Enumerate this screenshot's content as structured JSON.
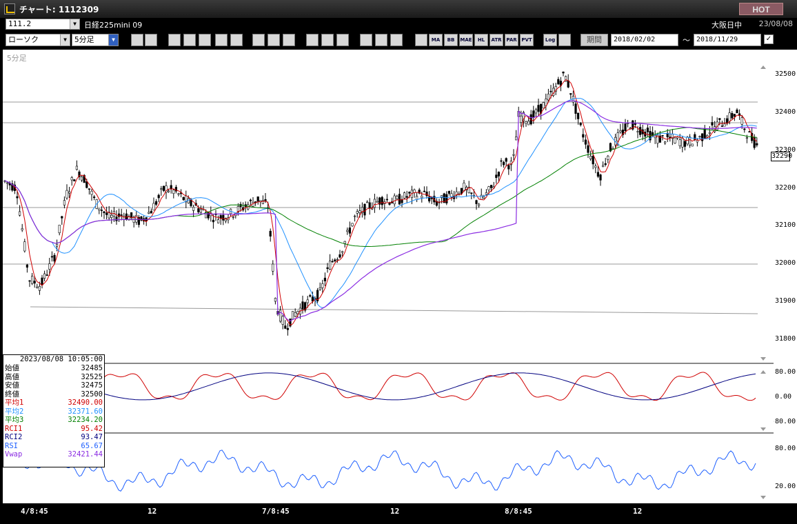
{
  "window": {
    "title": "チャート: 1112309",
    "hot_label": "HOT"
  },
  "symbol_bar": {
    "code": "111.2",
    "product_name": "日経225mini 09",
    "market": "大阪日中",
    "date": "23/08/08"
  },
  "toolbar": {
    "chart_type": "ローソク",
    "interval": "5分足",
    "buttons": [
      "MA",
      "BB",
      "MAE",
      "HL",
      "ATR",
      "PAR",
      "PVT",
      "Log"
    ],
    "period_label": "期間",
    "start_date": "2018/02/02",
    "range_sep": "～",
    "end_date": "2018/11/29"
  },
  "chart": {
    "interval_label": "5分足",
    "last_price_tag": "32290",
    "price_ticks": [
      "32500",
      "32400",
      "32300",
      "32200",
      "32100",
      "32000",
      "31900",
      "31800"
    ],
    "rci_ticks": [
      "80.00",
      "0.00",
      "-80.00"
    ],
    "rsi_ticks": [
      "80.00",
      "20.00"
    ],
    "time_labels": [
      "4/8:45",
      "12",
      "7/8:45",
      "12",
      "8/8:45",
      "12"
    ]
  },
  "data_window": {
    "datetime": "2023/08/08  10:05:00",
    "rows": [
      {
        "label": "始値",
        "value": "32485",
        "color": "#000000"
      },
      {
        "label": "高値",
        "value": "32525",
        "color": "#000000"
      },
      {
        "label": "安値",
        "value": "32475",
        "color": "#000000"
      },
      {
        "label": "終値",
        "value": "32500",
        "color": "#000000"
      },
      {
        "label": "平均1",
        "value": "32490.00",
        "color": "#d00000"
      },
      {
        "label": "平均2",
        "value": "32371.60",
        "color": "#1e90ff"
      },
      {
        "label": "平均3",
        "value": "32234.20",
        "color": "#008000"
      },
      {
        "label": "RCI1",
        "value": "95.42",
        "color": "#d00000"
      },
      {
        "label": "RCI2",
        "value": "93.47",
        "color": "#000080"
      },
      {
        "label": "RSI",
        "value": "65.67",
        "color": "#1e60ff"
      },
      {
        "label": "Vwap",
        "value": "32421.44",
        "color": "#8a2be2"
      }
    ]
  },
  "colors": {
    "candle": "#000000",
    "ma1": "#d00000",
    "ma2": "#1e90ff",
    "ma3": "#008000",
    "vwap": "#8a2be2",
    "rci1": "#d00000",
    "rci2": "#000080",
    "rsi": "#1e60ff"
  }
}
